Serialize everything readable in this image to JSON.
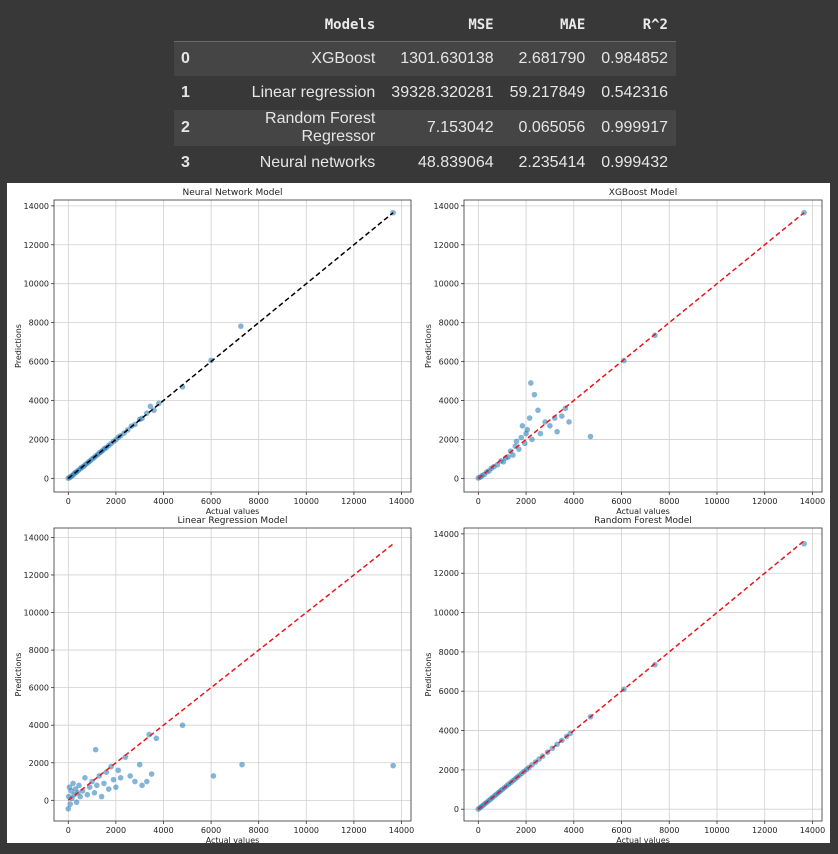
{
  "table": {
    "columns": [
      "",
      "Models",
      "MSE",
      "MAE",
      "R^2"
    ],
    "rows": [
      {
        "index": "0",
        "model": "XGBoost",
        "mse": "1301.630138",
        "mae": "2.681790",
        "r2": "0.984852"
      },
      {
        "index": "1",
        "model": "Linear regression",
        "mse": "39328.320281",
        "mae": "59.217849",
        "r2": "0.542316"
      },
      {
        "index": "2",
        "model": "Random Forest Regressor",
        "mse": "7.153042",
        "mae": "0.065056",
        "r2": "0.999917"
      },
      {
        "index": "3",
        "model": "Neural networks",
        "mse": "48.839064",
        "mae": "2.235414",
        "r2": "0.999432"
      }
    ]
  },
  "colors": {
    "point": "#1f77b4",
    "nn_line": "#000000",
    "ref_line": "#e8151b",
    "grid": "#d0d0d0"
  },
  "chart_data": [
    {
      "type": "scatter",
      "title": "Neural Network Model",
      "xlabel": "Actual values",
      "ylabel": "Predictions",
      "xlim": [
        -600,
        14400
      ],
      "ylim": [
        -700,
        14300
      ],
      "xticks": [
        0,
        2000,
        4000,
        6000,
        8000,
        10000,
        12000,
        14000
      ],
      "yticks": [
        0,
        2000,
        4000,
        6000,
        8000,
        10000,
        12000,
        14000
      ],
      "grid": true,
      "reference_line": {
        "from": [
          0,
          0
        ],
        "to": [
          13650,
          13650
        ],
        "style": "dashed",
        "color": "#000000"
      },
      "points": [
        [
          0,
          10
        ],
        [
          60,
          40
        ],
        [
          120,
          110
        ],
        [
          180,
          150
        ],
        [
          240,
          230
        ],
        [
          300,
          300
        ],
        [
          350,
          330
        ],
        [
          420,
          410
        ],
        [
          500,
          490
        ],
        [
          560,
          560
        ],
        [
          640,
          610
        ],
        [
          700,
          690
        ],
        [
          780,
          760
        ],
        [
          850,
          840
        ],
        [
          920,
          900
        ],
        [
          1000,
          1000
        ],
        [
          1080,
          1060
        ],
        [
          1150,
          1150
        ],
        [
          1230,
          1210
        ],
        [
          1300,
          1310
        ],
        [
          1380,
          1360
        ],
        [
          1450,
          1440
        ],
        [
          1520,
          1530
        ],
        [
          1600,
          1580
        ],
        [
          1700,
          1690
        ],
        [
          1800,
          1790
        ],
        [
          1900,
          1900
        ],
        [
          2000,
          1980
        ],
        [
          2100,
          2110
        ],
        [
          2200,
          2190
        ],
        [
          2350,
          2330
        ],
        [
          2500,
          2490
        ],
        [
          2650,
          2680
        ],
        [
          2800,
          2770
        ],
        [
          3000,
          3030
        ],
        [
          3100,
          3080
        ],
        [
          3300,
          3350
        ],
        [
          3450,
          3700
        ],
        [
          3600,
          3500
        ],
        [
          3800,
          3850
        ],
        [
          4800,
          4700
        ],
        [
          6000,
          6060
        ],
        [
          7250,
          7820
        ],
        [
          13650,
          13650
        ]
      ]
    },
    {
      "type": "scatter",
      "title": "XGBoost Model",
      "xlabel": "Actual values",
      "ylabel": "Predictions",
      "xlim": [
        -600,
        14400
      ],
      "ylim": [
        -700,
        14300
      ],
      "xticks": [
        0,
        2000,
        4000,
        6000,
        8000,
        10000,
        12000,
        14000
      ],
      "yticks": [
        0,
        2000,
        4000,
        6000,
        8000,
        10000,
        12000,
        14000
      ],
      "grid": true,
      "reference_line": {
        "from": [
          0,
          0
        ],
        "to": [
          13650,
          13650
        ],
        "style": "dashed",
        "color": "#e8151b"
      },
      "points": [
        [
          0,
          20
        ],
        [
          80,
          60
        ],
        [
          150,
          130
        ],
        [
          250,
          200
        ],
        [
          350,
          330
        ],
        [
          450,
          380
        ],
        [
          550,
          520
        ],
        [
          650,
          600
        ],
        [
          800,
          700
        ],
        [
          950,
          900
        ],
        [
          1050,
          850
        ],
        [
          1150,
          1050
        ],
        [
          1250,
          1100
        ],
        [
          1350,
          1400
        ],
        [
          1450,
          1200
        ],
        [
          1550,
          1650
        ],
        [
          1600,
          1900
        ],
        [
          1700,
          1500
        ],
        [
          1800,
          2100
        ],
        [
          1850,
          2700
        ],
        [
          1950,
          1800
        ],
        [
          2000,
          2300
        ],
        [
          2050,
          2500
        ],
        [
          2150,
          3100
        ],
        [
          2200,
          4900
        ],
        [
          2250,
          2000
        ],
        [
          2350,
          4300
        ],
        [
          2500,
          3500
        ],
        [
          2600,
          2300
        ],
        [
          2800,
          2900
        ],
        [
          3000,
          2700
        ],
        [
          3200,
          3100
        ],
        [
          3300,
          2400
        ],
        [
          3500,
          3200
        ],
        [
          3650,
          3600
        ],
        [
          3800,
          2900
        ],
        [
          4700,
          2150
        ],
        [
          6100,
          6050
        ],
        [
          7400,
          7350
        ],
        [
          13650,
          13650
        ]
      ]
    },
    {
      "type": "scatter",
      "title": "Linear Regression Model",
      "xlabel": "Actual values",
      "ylabel": "Predictions",
      "xlim": [
        -600,
        14400
      ],
      "ylim": [
        -1100,
        14500
      ],
      "xticks": [
        0,
        2000,
        4000,
        6000,
        8000,
        10000,
        12000,
        14000
      ],
      "yticks": [
        0,
        2000,
        4000,
        6000,
        8000,
        10000,
        12000,
        14000
      ],
      "grid": true,
      "reference_line": {
        "from": [
          0,
          0
        ],
        "to": [
          13650,
          13650
        ],
        "style": "dashed",
        "color": "#e8151b"
      },
      "points": [
        [
          0,
          -450
        ],
        [
          20,
          200
        ],
        [
          50,
          700
        ],
        [
          80,
          -200
        ],
        [
          120,
          500
        ],
        [
          150,
          100
        ],
        [
          200,
          900
        ],
        [
          250,
          300
        ],
        [
          300,
          600
        ],
        [
          350,
          -100
        ],
        [
          400,
          400
        ],
        [
          450,
          800
        ],
        [
          500,
          200
        ],
        [
          600,
          500
        ],
        [
          700,
          1200
        ],
        [
          800,
          300
        ],
        [
          900,
          700
        ],
        [
          1000,
          1000
        ],
        [
          1100,
          400
        ],
        [
          1150,
          2700
        ],
        [
          1200,
          800
        ],
        [
          1300,
          1300
        ],
        [
          1400,
          200
        ],
        [
          1500,
          900
        ],
        [
          1600,
          1500
        ],
        [
          1700,
          600
        ],
        [
          1800,
          1800
        ],
        [
          1900,
          1100
        ],
        [
          2000,
          700
        ],
        [
          2100,
          1600
        ],
        [
          2200,
          1200
        ],
        [
          2400,
          2300
        ],
        [
          2600,
          1300
        ],
        [
          2800,
          1000
        ],
        [
          3000,
          1900
        ],
        [
          3100,
          800
        ],
        [
          3300,
          1000
        ],
        [
          3400,
          3500
        ],
        [
          3500,
          1400
        ],
        [
          3700,
          3300
        ],
        [
          4800,
          4000
        ],
        [
          6100,
          1300
        ],
        [
          7300,
          1900
        ],
        [
          13650,
          1850
        ]
      ]
    },
    {
      "type": "scatter",
      "title": "Random Forest Model",
      "xlabel": "Actual values",
      "ylabel": "Predictions",
      "xlim": [
        -600,
        14400
      ],
      "ylim": [
        -600,
        14300
      ],
      "xticks": [
        0,
        2000,
        4000,
        6000,
        8000,
        10000,
        12000,
        14000
      ],
      "yticks": [
        0,
        2000,
        4000,
        6000,
        8000,
        10000,
        12000,
        14000
      ],
      "grid": true,
      "reference_line": {
        "from": [
          0,
          0
        ],
        "to": [
          13650,
          13650
        ],
        "style": "dashed",
        "color": "#e8151b"
      },
      "points": [
        [
          0,
          10
        ],
        [
          70,
          70
        ],
        [
          140,
          140
        ],
        [
          210,
          210
        ],
        [
          280,
          280
        ],
        [
          360,
          360
        ],
        [
          440,
          440
        ],
        [
          520,
          520
        ],
        [
          600,
          600
        ],
        [
          680,
          680
        ],
        [
          760,
          760
        ],
        [
          840,
          840
        ],
        [
          920,
          920
        ],
        [
          1000,
          1000
        ],
        [
          1090,
          1090
        ],
        [
          1180,
          1180
        ],
        [
          1270,
          1270
        ],
        [
          1360,
          1360
        ],
        [
          1450,
          1450
        ],
        [
          1540,
          1540
        ],
        [
          1630,
          1630
        ],
        [
          1720,
          1720
        ],
        [
          1820,
          1820
        ],
        [
          1920,
          1920
        ],
        [
          2020,
          2020
        ],
        [
          2120,
          2120
        ],
        [
          2250,
          2250
        ],
        [
          2400,
          2400
        ],
        [
          2550,
          2550
        ],
        [
          2700,
          2700
        ],
        [
          2900,
          2900
        ],
        [
          3100,
          3100
        ],
        [
          3300,
          3300
        ],
        [
          3500,
          3500
        ],
        [
          3700,
          3700
        ],
        [
          3850,
          3850
        ],
        [
          4700,
          4700
        ],
        [
          6100,
          6100
        ],
        [
          7400,
          7350
        ],
        [
          13650,
          13500
        ]
      ]
    }
  ]
}
